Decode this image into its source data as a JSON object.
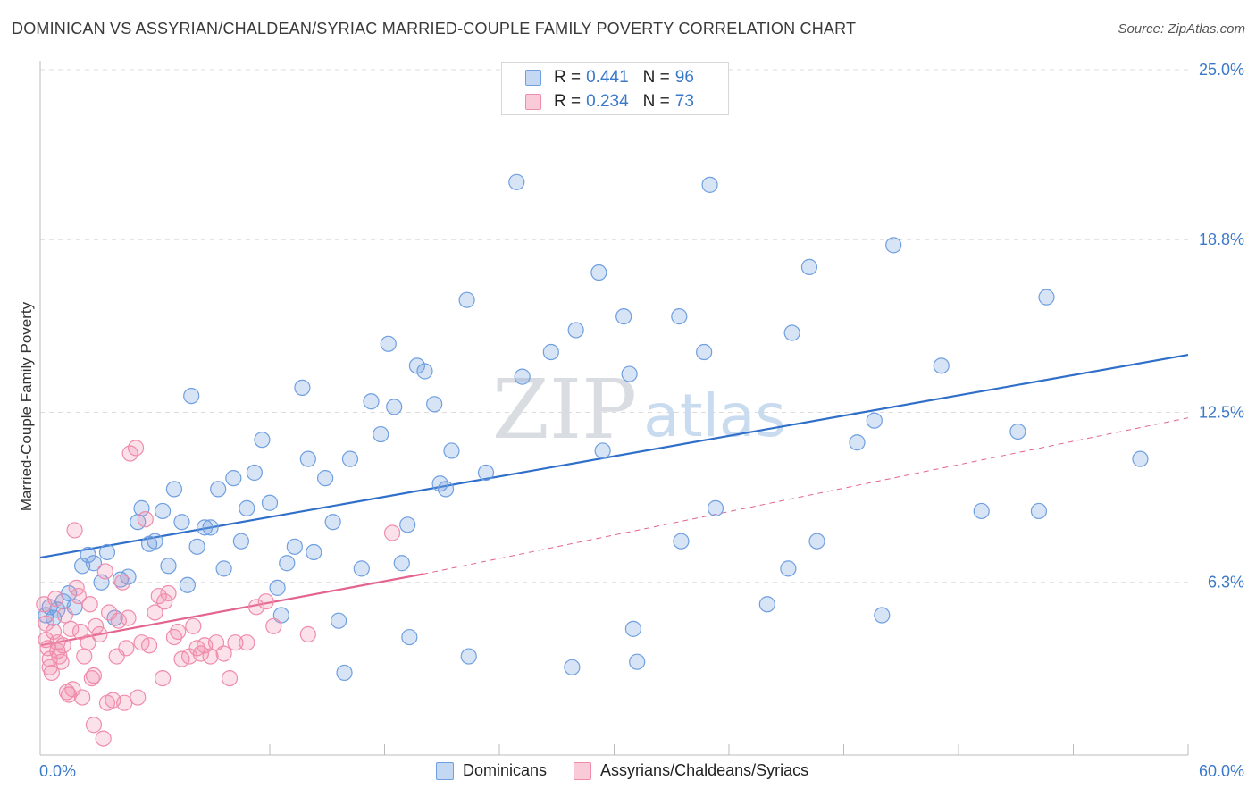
{
  "title": "DOMINICAN VS ASSYRIAN/CHALDEAN/SYRIAC MARRIED-COUPLE FAMILY POVERTY CORRELATION CHART",
  "source": "Source: ZipAtlas.com",
  "watermark": {
    "zip": "ZIP",
    "atlas": "atlas"
  },
  "legend_top": [
    {
      "r_label": "R =",
      "r_value": "0.441",
      "n_label": "N =",
      "n_value": "96",
      "color": "#6f9fe0"
    },
    {
      "r_label": "R =",
      "r_value": "0.234",
      "n_label": "N =",
      "n_value": "73",
      "color": "#f08cab"
    }
  ],
  "legend_bottom": [
    {
      "label": "Dominicans",
      "color": "#6f9fe0"
    },
    {
      "label": "Assyrians/Chaldeans/Syriacs",
      "color": "#f08cab"
    }
  ],
  "chart_data": {
    "type": "scatter",
    "title": "DOMINICAN VS ASSYRIAN/CHALDEAN/SYRIAC MARRIED-COUPLE FAMILY POVERTY CORRELATION CHART",
    "xlabel": "",
    "ylabel": "Married-Couple Family Poverty",
    "xlim": [
      0,
      60
    ],
    "ylim": [
      0,
      25
    ],
    "x_tick_labels": [
      "0.0%",
      "60.0%"
    ],
    "y_ticks": [
      6.3,
      12.5,
      18.8,
      25.0
    ],
    "y_tick_labels": [
      "6.3%",
      "12.5%",
      "18.8%",
      "25.0%"
    ],
    "grid": true,
    "series": [
      {
        "name": "Dominicans",
        "color": "#6f9fe0",
        "trend": {
          "x": [
            0,
            60
          ],
          "y": [
            7.2,
            14.6
          ],
          "style": "solid",
          "color": "#2f6fc9"
        },
        "points": [
          [
            0.3,
            5.1
          ],
          [
            0.5,
            5.4
          ],
          [
            0.7,
            5.0
          ],
          [
            0.9,
            5.3
          ],
          [
            1.2,
            5.6
          ],
          [
            1.5,
            5.9
          ],
          [
            1.8,
            5.4
          ],
          [
            2.2,
            6.9
          ],
          [
            2.5,
            7.3
          ],
          [
            2.8,
            7.0
          ],
          [
            3.2,
            6.3
          ],
          [
            3.5,
            7.4
          ],
          [
            3.9,
            5.0
          ],
          [
            4.2,
            6.4
          ],
          [
            4.6,
            6.5
          ],
          [
            5.1,
            8.5
          ],
          [
            5.3,
            9.0
          ],
          [
            5.7,
            7.7
          ],
          [
            6.0,
            7.8
          ],
          [
            6.4,
            8.9
          ],
          [
            6.7,
            6.9
          ],
          [
            7.0,
            9.7
          ],
          [
            7.4,
            8.5
          ],
          [
            7.7,
            6.2
          ],
          [
            7.9,
            13.1
          ],
          [
            8.2,
            7.6
          ],
          [
            8.6,
            8.3
          ],
          [
            8.9,
            8.3
          ],
          [
            9.3,
            9.7
          ],
          [
            9.6,
            6.8
          ],
          [
            10.1,
            10.1
          ],
          [
            10.5,
            7.8
          ],
          [
            10.8,
            9.0
          ],
          [
            11.2,
            10.3
          ],
          [
            11.6,
            11.5
          ],
          [
            12.0,
            9.2
          ],
          [
            12.4,
            6.1
          ],
          [
            12.6,
            5.1
          ],
          [
            12.9,
            7.0
          ],
          [
            13.3,
            7.6
          ],
          [
            13.7,
            13.4
          ],
          [
            14.0,
            10.8
          ],
          [
            14.3,
            7.4
          ],
          [
            14.9,
            10.1
          ],
          [
            15.3,
            8.5
          ],
          [
            15.6,
            4.9
          ],
          [
            15.9,
            3.0
          ],
          [
            16.2,
            10.8
          ],
          [
            16.8,
            6.8
          ],
          [
            17.3,
            12.9
          ],
          [
            17.8,
            11.7
          ],
          [
            18.2,
            15.0
          ],
          [
            18.5,
            12.7
          ],
          [
            18.9,
            7.0
          ],
          [
            19.2,
            8.4
          ],
          [
            19.3,
            4.3
          ],
          [
            19.7,
            14.2
          ],
          [
            20.1,
            14.0
          ],
          [
            20.6,
            12.8
          ],
          [
            20.9,
            9.9
          ],
          [
            21.2,
            9.7
          ],
          [
            21.5,
            11.1
          ],
          [
            22.3,
            16.6
          ],
          [
            22.4,
            3.6
          ],
          [
            23.3,
            10.3
          ],
          [
            24.9,
            20.9
          ],
          [
            25.2,
            13.8
          ],
          [
            26.7,
            14.7
          ],
          [
            27.8,
            3.2
          ],
          [
            28.0,
            15.5
          ],
          [
            29.2,
            17.6
          ],
          [
            29.4,
            11.1
          ],
          [
            30.5,
            16.0
          ],
          [
            30.8,
            13.9
          ],
          [
            31.0,
            4.6
          ],
          [
            31.2,
            3.4
          ],
          [
            33.4,
            16.0
          ],
          [
            33.5,
            7.8
          ],
          [
            34.7,
            14.7
          ],
          [
            35.0,
            20.8
          ],
          [
            35.3,
            9.0
          ],
          [
            38.0,
            5.5
          ],
          [
            39.1,
            6.8
          ],
          [
            39.3,
            15.4
          ],
          [
            40.2,
            17.8
          ],
          [
            40.6,
            7.8
          ],
          [
            42.7,
            11.4
          ],
          [
            43.6,
            12.2
          ],
          [
            44.0,
            5.1
          ],
          [
            44.6,
            18.6
          ],
          [
            47.1,
            14.2
          ],
          [
            49.2,
            8.9
          ],
          [
            51.1,
            11.8
          ],
          [
            52.2,
            8.9
          ],
          [
            52.6,
            16.7
          ],
          [
            57.5,
            10.8
          ]
        ]
      },
      {
        "name": "Assyrians/Chaldeans/Syriacs",
        "color": "#f08cab",
        "trend": {
          "x": [
            0,
            20
          ],
          "y": [
            4.0,
            6.6
          ],
          "style": "solid",
          "color": "#e3648e",
          "extension": {
            "x": [
              20,
              60
            ],
            "y": [
              6.6,
              12.3
            ],
            "style": "dashed"
          }
        },
        "points": [
          [
            0.2,
            5.5
          ],
          [
            0.3,
            4.8
          ],
          [
            0.3,
            4.2
          ],
          [
            0.4,
            3.9
          ],
          [
            0.5,
            3.5
          ],
          [
            0.5,
            3.2
          ],
          [
            0.6,
            3.0
          ],
          [
            0.7,
            4.5
          ],
          [
            0.8,
            5.7
          ],
          [
            0.9,
            3.8
          ],
          [
            0.9,
            4.1
          ],
          [
            1.0,
            3.6
          ],
          [
            1.1,
            3.4
          ],
          [
            1.2,
            4.0
          ],
          [
            1.3,
            5.1
          ],
          [
            1.4,
            2.3
          ],
          [
            1.5,
            2.2
          ],
          [
            1.6,
            4.6
          ],
          [
            1.7,
            2.4
          ],
          [
            1.8,
            8.2
          ],
          [
            1.9,
            6.1
          ],
          [
            2.0,
            5.8
          ],
          [
            2.1,
            4.5
          ],
          [
            2.2,
            2.1
          ],
          [
            2.3,
            3.6
          ],
          [
            2.5,
            4.1
          ],
          [
            2.6,
            5.5
          ],
          [
            2.7,
            2.8
          ],
          [
            2.8,
            2.9
          ],
          [
            2.8,
            1.1
          ],
          [
            2.9,
            4.7
          ],
          [
            3.1,
            4.4
          ],
          [
            3.3,
            0.6
          ],
          [
            3.4,
            6.7
          ],
          [
            3.5,
            1.9
          ],
          [
            3.6,
            5.2
          ],
          [
            3.8,
            2.0
          ],
          [
            4.0,
            3.6
          ],
          [
            4.1,
            4.9
          ],
          [
            4.3,
            6.3
          ],
          [
            4.4,
            1.9
          ],
          [
            4.5,
            3.9
          ],
          [
            4.6,
            5.0
          ],
          [
            4.7,
            11.0
          ],
          [
            5.0,
            11.2
          ],
          [
            5.1,
            2.1
          ],
          [
            5.3,
            4.1
          ],
          [
            5.5,
            8.6
          ],
          [
            5.7,
            4.0
          ],
          [
            6.0,
            5.2
          ],
          [
            6.2,
            5.8
          ],
          [
            6.4,
            2.8
          ],
          [
            6.5,
            5.6
          ],
          [
            6.7,
            5.9
          ],
          [
            7.0,
            4.3
          ],
          [
            7.2,
            4.5
          ],
          [
            7.4,
            3.5
          ],
          [
            7.8,
            3.6
          ],
          [
            8.0,
            4.7
          ],
          [
            8.2,
            3.9
          ],
          [
            8.4,
            3.7
          ],
          [
            8.6,
            4.0
          ],
          [
            8.9,
            3.6
          ],
          [
            9.2,
            4.1
          ],
          [
            9.6,
            3.7
          ],
          [
            9.9,
            2.8
          ],
          [
            10.2,
            4.1
          ],
          [
            10.8,
            4.1
          ],
          [
            11.3,
            5.4
          ],
          [
            11.8,
            5.6
          ],
          [
            12.2,
            4.7
          ],
          [
            14.0,
            4.4
          ],
          [
            18.4,
            8.1
          ]
        ]
      }
    ]
  }
}
